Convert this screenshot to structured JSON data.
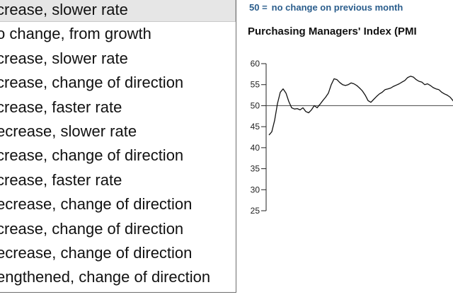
{
  "list": {
    "items": [
      {
        "label": "crease, slower rate",
        "selected": true
      },
      {
        "label": "o change, from growth",
        "selected": false
      },
      {
        "label": "crease, slower rate",
        "selected": false
      },
      {
        "label": "crease, change of direction",
        "selected": false
      },
      {
        "label": "crease, faster rate",
        "selected": false
      },
      {
        "label": "ecrease, slower rate",
        "selected": false
      },
      {
        "label": "crease, change of direction",
        "selected": false
      },
      {
        "label": "crease, faster rate",
        "selected": false
      },
      {
        "label": "ecrease, change of direction",
        "selected": false
      },
      {
        "label": "crease, change of direction",
        "selected": false
      },
      {
        "label": "ecrease, change of direction",
        "selected": false
      },
      {
        "label": "engthened, change of direction",
        "selected": false
      }
    ]
  },
  "note": {
    "number": "50 =",
    "text": "no change on previous month"
  },
  "chart_title": "Purchasing Managers' Index (PMI",
  "colors": {
    "note": "#2a5d8c",
    "line": "#111111",
    "axis": "#222222",
    "selected_bg": "#e6e6e6"
  },
  "chart_data": {
    "type": "line",
    "title": "Purchasing Managers' Index (PMI",
    "ylim": [
      25,
      60
    ],
    "yticks": [
      25,
      30,
      35,
      40,
      45,
      50,
      55,
      60
    ],
    "reference_line": 50,
    "grid": false,
    "series": [
      {
        "values": [
          43,
          43.8,
          46.5,
          50.5,
          53.2,
          54,
          53,
          51,
          49.5,
          49.2,
          49.3,
          49,
          49.5,
          48.6,
          48.3,
          49,
          50,
          49.5,
          50.3,
          51.2,
          52,
          53,
          55,
          56.4,
          56.2,
          55.5,
          55,
          54.8,
          55,
          55.4,
          55.2,
          54.8,
          54.2,
          53.5,
          52.5,
          51.2,
          50.8,
          51.5,
          52.2,
          52.8,
          53.2,
          53.8,
          54,
          54.2,
          54.6,
          54.9,
          55.2,
          55.6,
          56,
          56.7,
          57,
          56.8,
          56.2,
          55.8,
          55.6,
          55,
          55.2,
          54.8,
          54.3,
          54,
          53.8,
          53.2,
          52.8,
          52.5,
          52,
          51.2,
          50.2,
          49.3
        ]
      }
    ]
  }
}
